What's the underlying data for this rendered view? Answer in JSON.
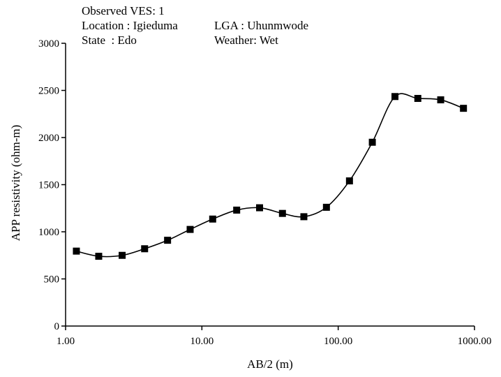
{
  "header": {
    "observed": "Observed VES: 1",
    "location": "Location : Igieduma",
    "lga": "LGA : Uhunmwode",
    "state": "State  : Edo",
    "weather": "Weather: Wet"
  },
  "chart_data": {
    "type": "line",
    "title": "",
    "xlabel": "AB/2 (m)",
    "ylabel": "APP resistivity (ohm-m)",
    "xscale": "log",
    "xlim": [
      1,
      1000
    ],
    "ylim": [
      0,
      3000
    ],
    "grid": false,
    "legend": "none",
    "x_tick_labels": [
      "1.00",
      "10.00",
      "100.00",
      "1000.00"
    ],
    "x_ticks": [
      1,
      10,
      100,
      1000
    ],
    "y_ticks": [
      0,
      500,
      1000,
      1500,
      2000,
      2500,
      3000
    ],
    "y_tick_labels": [
      "0",
      "500",
      "1000",
      "1500",
      "2000",
      "2500",
      "3000"
    ],
    "series": [
      {
        "marker": "square",
        "color": "#000000",
        "x": [
          1.2,
          1.75,
          2.6,
          3.8,
          5.6,
          8.2,
          12,
          18,
          26.5,
          39,
          56,
          82,
          121,
          178,
          261,
          384,
          565,
          830
        ],
        "y": [
          795,
          740,
          750,
          820,
          910,
          1025,
          1135,
          1230,
          1255,
          1195,
          1160,
          1260,
          1540,
          1950,
          2435,
          2415,
          2400,
          2310
        ]
      }
    ]
  }
}
